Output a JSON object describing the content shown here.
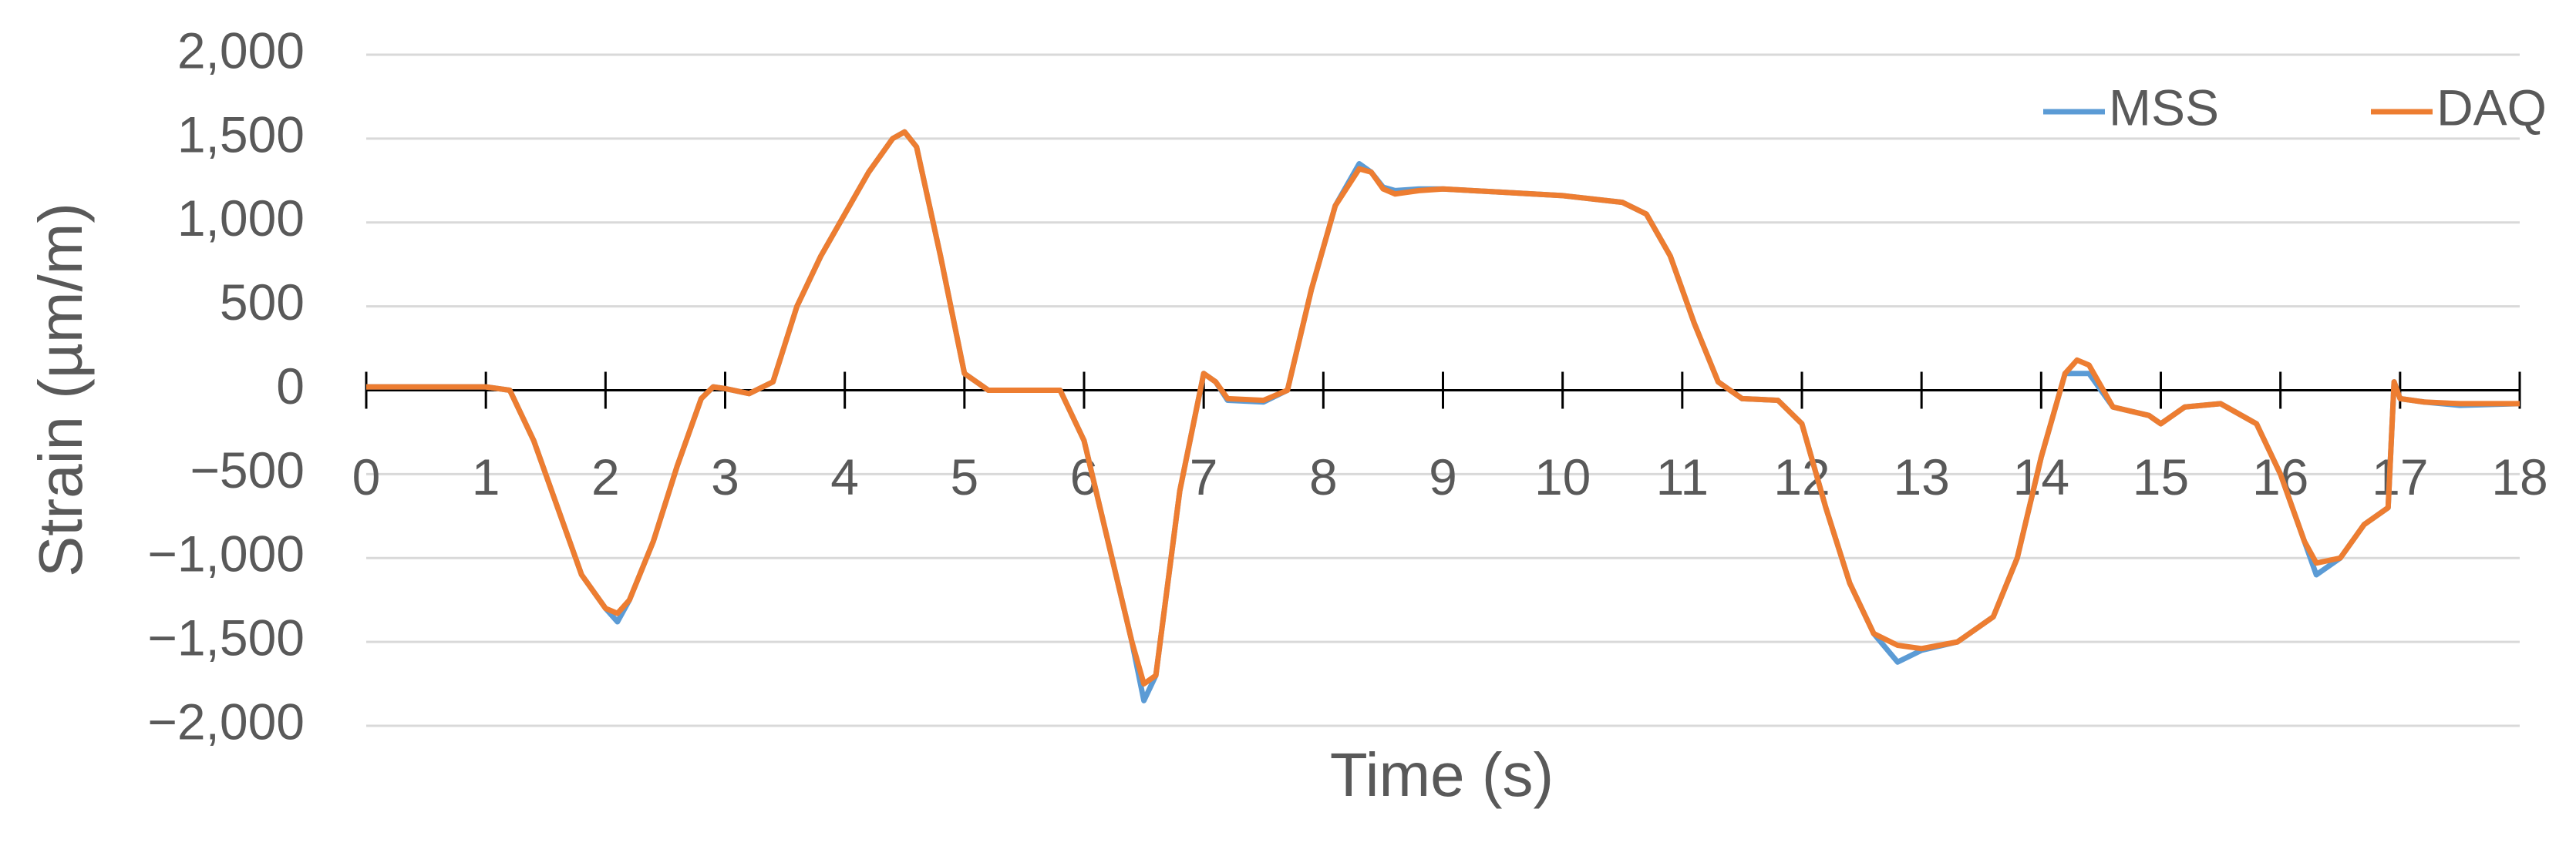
{
  "chart_data": {
    "type": "line",
    "x_label": "Time (s)",
    "y_label": "Strain (µm/m)",
    "x": [
      0,
      0.5,
      1.0,
      1.2,
      1.4,
      1.6,
      1.8,
      2.0,
      2.1,
      2.2,
      2.4,
      2.6,
      2.8,
      2.9,
      3.0,
      3.2,
      3.4,
      3.6,
      3.8,
      4.0,
      4.2,
      4.4,
      4.5,
      4.6,
      4.8,
      5.0,
      5.2,
      5.5,
      5.8,
      6.0,
      6.2,
      6.4,
      6.5,
      6.6,
      6.8,
      7.0,
      7.1,
      7.2,
      7.5,
      7.7,
      7.9,
      8.1,
      8.3,
      8.4,
      8.5,
      8.6,
      8.8,
      9.0,
      9.5,
      10.0,
      10.5,
      10.7,
      10.9,
      11.1,
      11.3,
      11.5,
      11.8,
      12.0,
      12.2,
      12.4,
      12.6,
      12.8,
      13.0,
      13.3,
      13.6,
      13.8,
      14.0,
      14.2,
      14.3,
      14.4,
      14.6,
      14.9,
      15.0,
      15.2,
      15.5,
      15.8,
      16.0,
      16.2,
      16.3,
      16.5,
      16.7,
      16.9,
      16.95,
      17.0,
      17.2,
      17.5,
      18.0
    ],
    "series": [
      {
        "name": "MSS",
        "color": "#5b9bd5",
        "values": [
          20,
          20,
          20,
          0,
          -300,
          -700,
          -1100,
          -1300,
          -1380,
          -1250,
          -900,
          -450,
          -50,
          20,
          10,
          -20,
          50,
          500,
          800,
          1050,
          1300,
          1500,
          1540,
          1450,
          800,
          100,
          0,
          0,
          0,
          -300,
          -900,
          -1500,
          -1850,
          -1700,
          -600,
          100,
          50,
          -60,
          -70,
          0,
          600,
          1100,
          1350,
          1300,
          1210,
          1190,
          1200,
          1200,
          1180,
          1160,
          1120,
          1050,
          800,
          400,
          50,
          -50,
          -60,
          -200,
          -700,
          -1150,
          -1450,
          -1620,
          -1550,
          -1500,
          -1350,
          -1000,
          -400,
          100,
          100,
          100,
          -100,
          -150,
          -200,
          -100,
          -80,
          -200,
          -500,
          -900,
          -1100,
          -1000,
          -800,
          -700,
          50,
          -50,
          -70,
          -90,
          -80
        ]
      },
      {
        "name": "DAQ",
        "color": "#ed7d31",
        "values": [
          20,
          20,
          20,
          0,
          -300,
          -700,
          -1100,
          -1300,
          -1330,
          -1250,
          -900,
          -450,
          -50,
          20,
          10,
          -20,
          50,
          500,
          800,
          1050,
          1300,
          1500,
          1540,
          1450,
          800,
          100,
          0,
          0,
          0,
          -300,
          -900,
          -1500,
          -1750,
          -1700,
          -600,
          100,
          50,
          -50,
          -60,
          0,
          600,
          1100,
          1320,
          1300,
          1200,
          1170,
          1190,
          1200,
          1180,
          1160,
          1120,
          1050,
          800,
          400,
          50,
          -50,
          -60,
          -200,
          -700,
          -1150,
          -1450,
          -1520,
          -1540,
          -1500,
          -1350,
          -1000,
          -400,
          100,
          180,
          150,
          -100,
          -150,
          -200,
          -100,
          -80,
          -200,
          -500,
          -900,
          -1030,
          -1000,
          -800,
          -700,
          50,
          -50,
          -70,
          -80,
          -80
        ]
      }
    ],
    "xlim": [
      0,
      18
    ],
    "xticks": [
      0,
      1,
      2,
      3,
      4,
      5,
      6,
      7,
      8,
      9,
      10,
      11,
      12,
      13,
      14,
      15,
      16,
      17,
      18
    ],
    "ylim": [
      -2000,
      2000
    ],
    "yticks": [
      {
        "value": -2000,
        "label": "−2,000"
      },
      {
        "value": -1500,
        "label": "−1,500"
      },
      {
        "value": -1000,
        "label": "−1,000"
      },
      {
        "value": -500,
        "label": "−500"
      },
      0,
      500,
      {
        "value": 1000,
        "label": "1,000"
      },
      {
        "value": 1500,
        "label": "1,500"
      },
      {
        "value": 2000,
        "label": "2,000"
      }
    ],
    "grid": true,
    "legend": "top-right"
  }
}
